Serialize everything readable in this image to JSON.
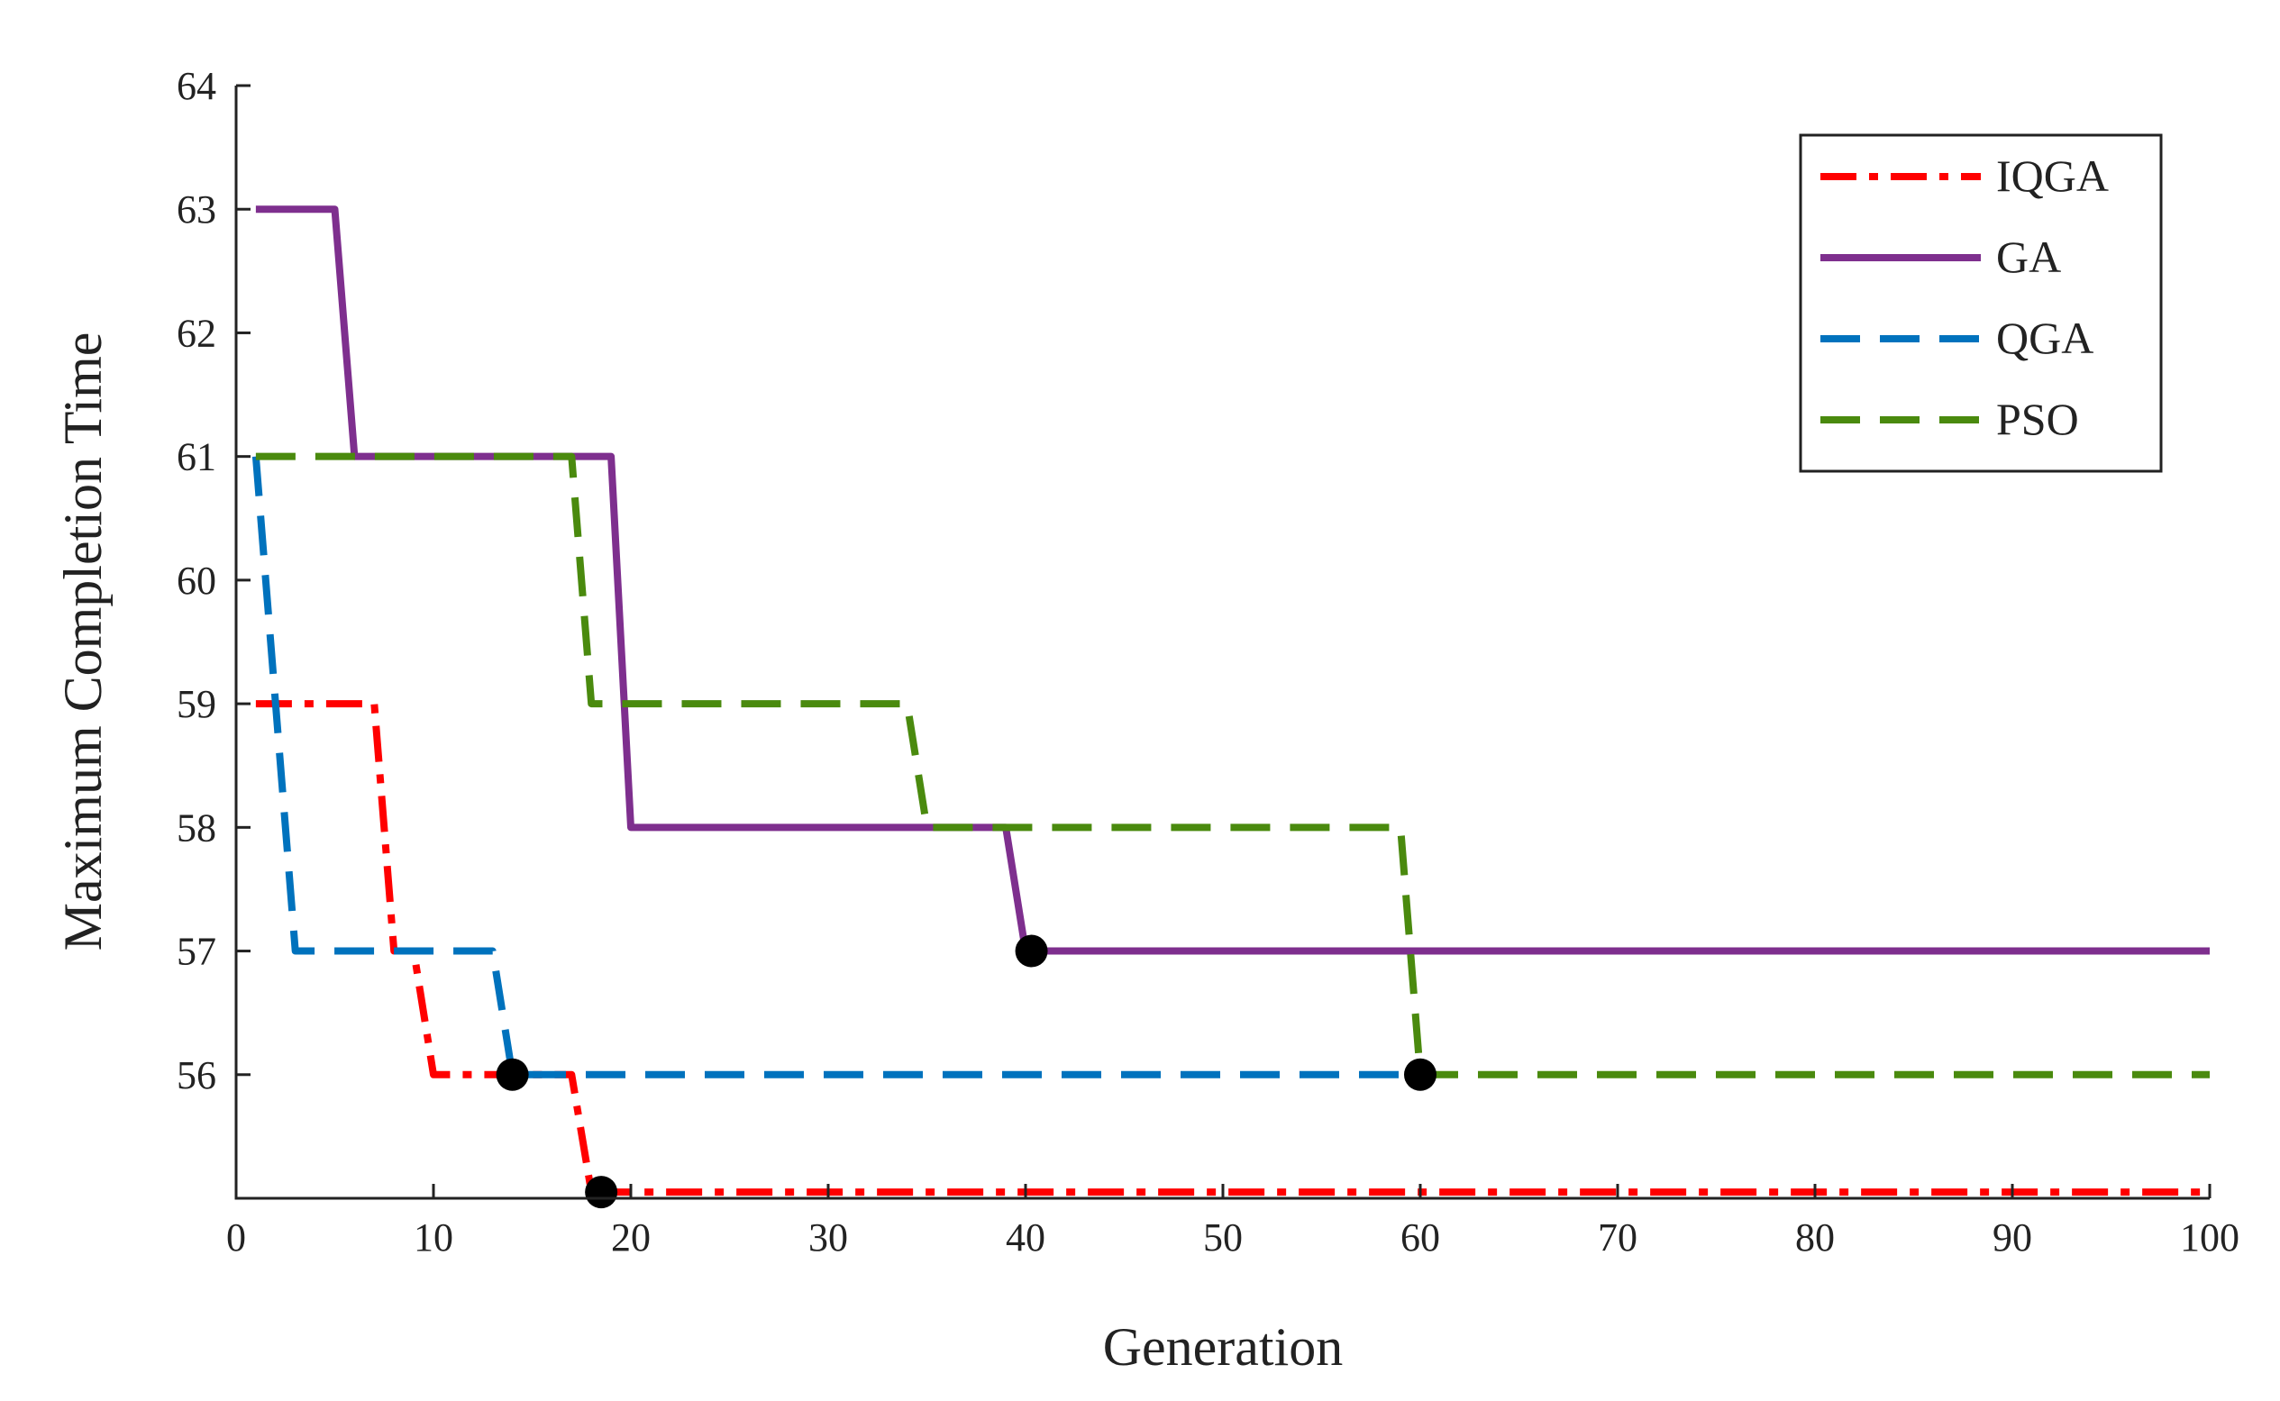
{
  "chart_data": {
    "type": "line",
    "title": "",
    "xlabel": "Generation",
    "ylabel": "Maximum Completion Time",
    "xlim": [
      0,
      100
    ],
    "ylim": [
      55,
      64
    ],
    "x_ticks": [
      0,
      10,
      20,
      30,
      40,
      50,
      60,
      70,
      80,
      90,
      100
    ],
    "x_tick_labels": [
      "0",
      "10",
      "20",
      "30",
      "40",
      "50",
      "60",
      "70",
      "80",
      "90",
      "100"
    ],
    "y_ticks": [
      56,
      57,
      58,
      59,
      60,
      61,
      62,
      63,
      64
    ],
    "y_tick_labels": [
      "56",
      "57",
      "58",
      "59",
      "60",
      "61",
      "62",
      "63",
      "64"
    ],
    "grid": false,
    "legend_position": "top-right",
    "series": [
      {
        "name": "IQGA",
        "color": "#ff0000",
        "style": "dashdot",
        "points": [
          [
            1,
            59
          ],
          [
            7,
            59
          ],
          [
            8,
            57
          ],
          [
            9,
            57
          ],
          [
            10,
            56
          ],
          [
            17,
            56
          ],
          [
            18,
            55.05
          ],
          [
            100,
            55.05
          ]
        ],
        "marker": [
          18.5,
          55.05
        ]
      },
      {
        "name": "GA",
        "color": "#7e2f8e",
        "style": "solid",
        "points": [
          [
            1,
            63
          ],
          [
            5,
            63
          ],
          [
            6,
            61
          ],
          [
            19,
            61
          ],
          [
            20,
            58
          ],
          [
            39,
            58
          ],
          [
            40,
            57
          ],
          [
            100,
            57
          ]
        ],
        "marker": [
          40.3,
          57
        ]
      },
      {
        "name": "QGA",
        "color": "#0072bd",
        "style": "dashed",
        "points": [
          [
            1,
            61
          ],
          [
            2,
            59
          ],
          [
            3,
            57
          ],
          [
            13,
            57
          ],
          [
            14,
            56
          ],
          [
            60,
            56
          ]
        ],
        "marker": [
          14,
          56
        ]
      },
      {
        "name": "PSO",
        "color": "#4a8a0e",
        "style": "dashed",
        "points": [
          [
            1,
            61
          ],
          [
            17,
            61
          ],
          [
            18,
            59
          ],
          [
            34,
            59
          ],
          [
            35,
            58
          ],
          [
            59,
            58
          ],
          [
            60,
            56
          ],
          [
            100,
            56
          ]
        ],
        "marker": [
          60,
          56
        ]
      }
    ]
  }
}
